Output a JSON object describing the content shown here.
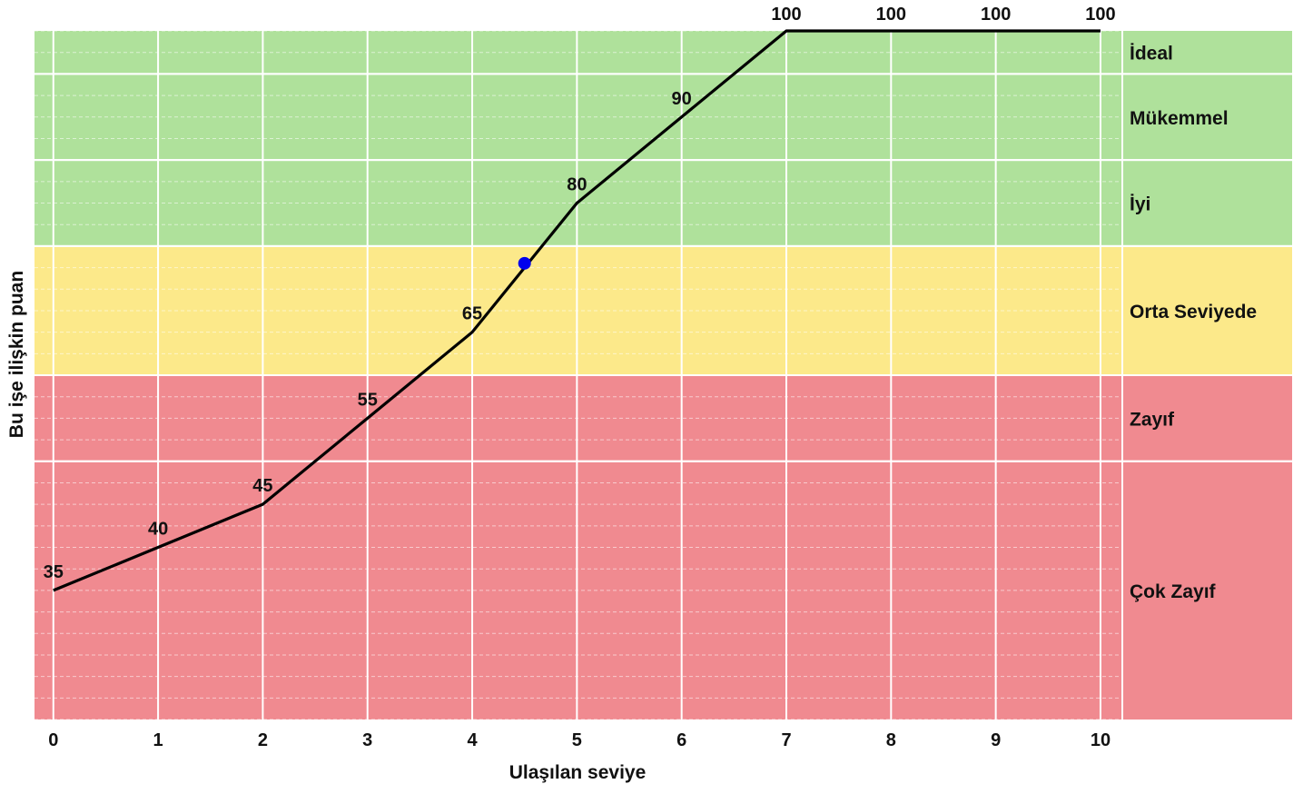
{
  "chart_data": {
    "type": "line",
    "title": "",
    "xlabel": "Ulaşılan seviye",
    "ylabel": "Bu işe ilişkin puan",
    "xlim": [
      -0.18,
      11.83
    ],
    "ylim": [
      20,
      100
    ],
    "xticks": [
      "0",
      "1",
      "2",
      "3",
      "4",
      "5",
      "6",
      "7",
      "8",
      "9",
      "10"
    ],
    "grid": true,
    "series": [
      {
        "name": "",
        "color": "#000000",
        "x": [
          0,
          1,
          2,
          3,
          4,
          5,
          6,
          7,
          8,
          9,
          10
        ],
        "y": [
          35,
          40,
          45,
          55,
          65,
          80,
          90,
          100,
          100,
          100,
          100
        ],
        "labels": [
          "35",
          "40",
          "45",
          "55",
          "65",
          "80",
          "90",
          "100",
          "100",
          "100",
          "100"
        ]
      }
    ],
    "marker": {
      "x": 4.5,
      "y": 73,
      "color": "#0000ee"
    },
    "bands": [
      {
        "label": "İdeal",
        "from": 95,
        "to": 100,
        "color": "#afe19b"
      },
      {
        "label": "Mükemmel",
        "from": 85,
        "to": 95,
        "color": "#afe19b"
      },
      {
        "label": "İyi",
        "from": 75,
        "to": 85,
        "color": "#afe19b"
      },
      {
        "label": "Orta Seviyede",
        "from": 60,
        "to": 75,
        "color": "#fce98a"
      },
      {
        "label": "Zayıf",
        "from": 50,
        "to": 60,
        "color": "#f08a90"
      },
      {
        "label": "Çok Zayıf",
        "from": 20,
        "to": 50,
        "color": "#f08a90"
      }
    ]
  }
}
